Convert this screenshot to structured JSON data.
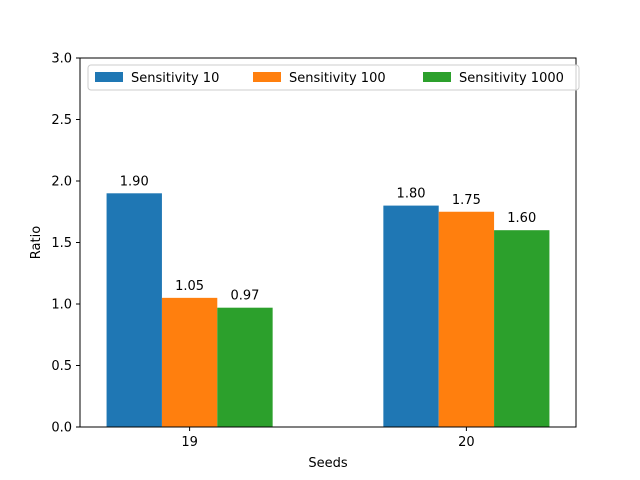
{
  "chart_data": {
    "type": "bar",
    "categories": [
      "19",
      "20"
    ],
    "series": [
      {
        "name": "Sensitivity 10",
        "values": [
          1.9,
          1.8
        ],
        "labels": [
          "1.90",
          "1.80"
        ],
        "color": "#1f77b4"
      },
      {
        "name": "Sensitivity 100",
        "values": [
          1.05,
          1.75
        ],
        "labels": [
          "1.05",
          "1.75"
        ],
        "color": "#ff7f0e"
      },
      {
        "name": "Sensitivity 1000",
        "values": [
          0.97,
          1.6
        ],
        "labels": [
          "0.97",
          "1.60"
        ],
        "color": "#2ca02c"
      }
    ],
    "xlabel": "Seeds",
    "ylabel": "Ratio",
    "ylim": [
      0,
      3.0
    ],
    "yticks": [
      0.0,
      0.5,
      1.0,
      1.5,
      2.0,
      2.5,
      3.0
    ],
    "ytick_labels": [
      "0.0",
      "0.5",
      "1.0",
      "1.5",
      "2.0",
      "2.5",
      "3.0"
    ],
    "grid": false,
    "legend_position": "top"
  }
}
